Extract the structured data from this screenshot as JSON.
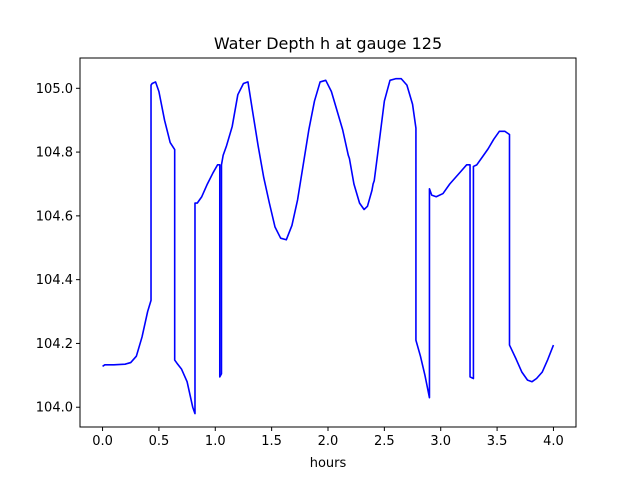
{
  "chart_data": {
    "type": "line",
    "title": "Water Depth h at gauge 125",
    "xlabel": "hours",
    "ylabel": "",
    "xlim": [
      -0.2,
      4.2
    ],
    "ylim": [
      103.938,
      105.095
    ],
    "xticks": [
      0.0,
      0.5,
      1.0,
      1.5,
      2.0,
      2.5,
      3.0,
      3.5,
      4.0
    ],
    "xtick_labels": [
      "0.0",
      "0.5",
      "1.0",
      "1.5",
      "2.0",
      "2.5",
      "3.0",
      "3.5",
      "4.0"
    ],
    "yticks": [
      104.0,
      104.2,
      104.4,
      104.6,
      104.8,
      105.0
    ],
    "ytick_labels": [
      "104.0",
      "104.2",
      "104.4",
      "104.6",
      "104.8",
      "105.0"
    ],
    "grid": false,
    "legend": "none",
    "series": [
      {
        "color": "#0000ff",
        "x": [
          0.0,
          0.02,
          0.1,
          0.2,
          0.25,
          0.3,
          0.35,
          0.4,
          0.43,
          0.43,
          0.44,
          0.47,
          0.5,
          0.55,
          0.6,
          0.64,
          0.64,
          0.66,
          0.7,
          0.75,
          0.8,
          0.82,
          0.82,
          0.84,
          0.88,
          0.93,
          0.98,
          1.02,
          1.04,
          1.04,
          1.055,
          1.055,
          1.07,
          1.1,
          1.15,
          1.2,
          1.25,
          1.29,
          1.33,
          1.38,
          1.43,
          1.48,
          1.53,
          1.58,
          1.63,
          1.68,
          1.73,
          1.78,
          1.83,
          1.88,
          1.93,
          1.98,
          2.03,
          2.08,
          2.13,
          2.18,
          2.19,
          2.23,
          2.28,
          2.32,
          2.35,
          2.39,
          2.4,
          2.41,
          2.45,
          2.5,
          2.55,
          2.6,
          2.65,
          2.7,
          2.75,
          2.78,
          2.78,
          2.82,
          2.86,
          2.9,
          2.9,
          2.92,
          2.96,
          3.02,
          3.08,
          3.13,
          3.18,
          3.23,
          3.26,
          3.26,
          3.29,
          3.29,
          3.32,
          3.37,
          3.42,
          3.47,
          3.52,
          3.57,
          3.61,
          3.61,
          3.63,
          3.67,
          3.72,
          3.77,
          3.81,
          3.85,
          3.9,
          3.95,
          4.0
        ],
        "y": [
          104.128,
          104.133,
          104.133,
          104.135,
          104.14,
          104.16,
          104.22,
          104.3,
          104.335,
          105.01,
          105.015,
          105.02,
          104.99,
          104.9,
          104.83,
          104.808,
          104.148,
          104.138,
          104.12,
          104.08,
          104.0,
          103.98,
          104.64,
          104.64,
          104.66,
          104.7,
          104.735,
          104.76,
          104.76,
          104.095,
          104.105,
          104.76,
          104.79,
          104.82,
          104.88,
          104.98,
          105.015,
          105.02,
          104.93,
          104.82,
          104.72,
          104.64,
          104.565,
          104.53,
          104.525,
          104.57,
          104.65,
          104.76,
          104.87,
          104.96,
          105.02,
          105.025,
          104.99,
          104.93,
          104.87,
          104.79,
          104.78,
          104.7,
          104.64,
          104.62,
          104.63,
          104.68,
          104.7,
          104.71,
          104.82,
          104.96,
          105.025,
          105.03,
          105.03,
          105.01,
          104.95,
          104.875,
          104.21,
          104.16,
          104.1,
          104.03,
          104.685,
          104.665,
          104.66,
          104.67,
          104.7,
          104.72,
          104.74,
          104.76,
          104.76,
          104.095,
          104.09,
          104.755,
          104.76,
          104.785,
          104.81,
          104.84,
          104.865,
          104.865,
          104.855,
          104.195,
          104.18,
          104.15,
          104.11,
          104.085,
          104.08,
          104.09,
          104.11,
          104.15,
          104.195
        ]
      }
    ]
  }
}
